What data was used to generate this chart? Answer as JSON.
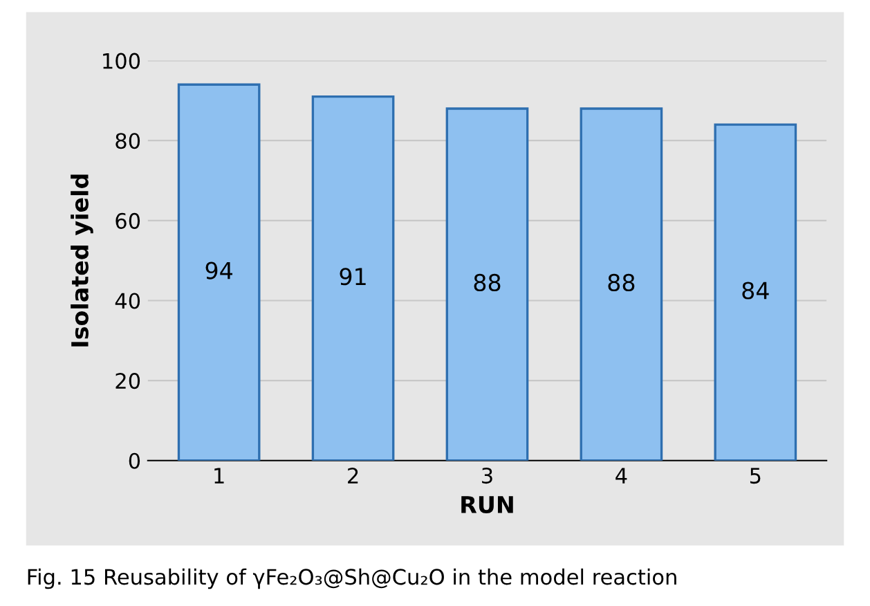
{
  "chart_data": {
    "type": "bar",
    "xlabel": "RUN",
    "ylabel": "Isolated yield",
    "categories": [
      "1",
      "2",
      "3",
      "4",
      "5"
    ],
    "values": [
      94,
      91,
      88,
      88,
      84
    ],
    "color": "#8ec0f0",
    "ylim": [
      0,
      100
    ],
    "yticks": [
      0,
      20,
      40,
      60,
      80,
      100
    ],
    "grid": "y",
    "data_labels": true,
    "annotations": [
      "Fig. 15 Reusability of γFe₂O₃@Sh@Cu₂O in the model reaction"
    ]
  }
}
